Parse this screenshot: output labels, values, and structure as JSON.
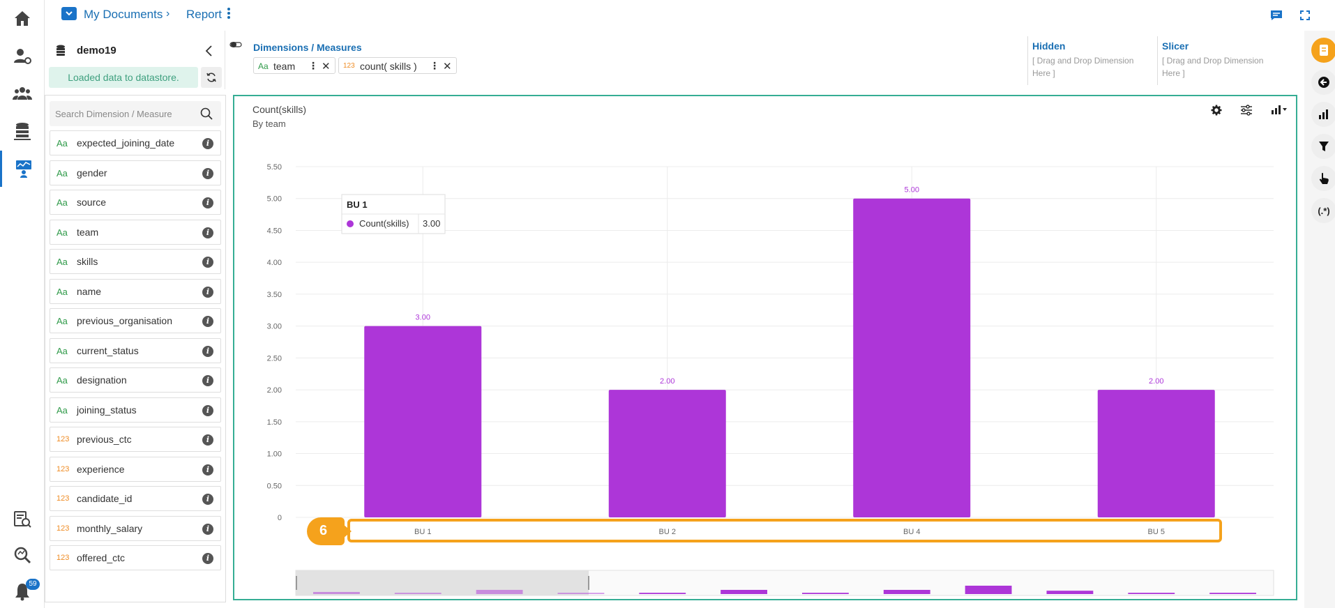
{
  "breadcrumb": {
    "root": "My Documents",
    "current": "Report"
  },
  "datastore": {
    "name": "demo19",
    "status": "Loaded data to datastore."
  },
  "search": {
    "placeholder": "Search Dimension / Measure"
  },
  "fields": [
    {
      "type_label": "Aa",
      "kind": "dimension",
      "name": "expected_joining_date"
    },
    {
      "type_label": "Aa",
      "kind": "dimension",
      "name": "gender"
    },
    {
      "type_label": "Aa",
      "kind": "dimension",
      "name": "source"
    },
    {
      "type_label": "Aa",
      "kind": "dimension",
      "name": "team"
    },
    {
      "type_label": "Aa",
      "kind": "dimension",
      "name": "skills"
    },
    {
      "type_label": "Aa",
      "kind": "dimension",
      "name": "name"
    },
    {
      "type_label": "Aa",
      "kind": "dimension",
      "name": "previous_organisation"
    },
    {
      "type_label": "Aa",
      "kind": "dimension",
      "name": "current_status"
    },
    {
      "type_label": "Aa",
      "kind": "dimension",
      "name": "designation"
    },
    {
      "type_label": "Aa",
      "kind": "dimension",
      "name": "joining_status"
    },
    {
      "type_label": "123",
      "kind": "measure",
      "name": "previous_ctc"
    },
    {
      "type_label": "123",
      "kind": "measure",
      "name": "experience"
    },
    {
      "type_label": "123",
      "kind": "measure",
      "name": "candidate_id"
    },
    {
      "type_label": "123",
      "kind": "measure",
      "name": "monthly_salary"
    },
    {
      "type_label": "123",
      "kind": "measure",
      "name": "offered_ctc"
    }
  ],
  "info_glyph": "i",
  "dimbar": {
    "title": "Dimensions / Measures",
    "chips": [
      {
        "type_label": "Aa",
        "name": "team"
      },
      {
        "type_label": "123",
        "name": "count( skills )"
      }
    ],
    "hidden": {
      "title": "Hidden",
      "hint": "[ Drag and Drop Dimension Here ]"
    },
    "slicer": {
      "title": "Slicer",
      "hint": "[ Drag and Drop Dimension Here ]"
    }
  },
  "notifications_count": "59",
  "annotation_number": "6",
  "icons": {
    "nav": [
      "home-icon",
      "user-settings-icon",
      "users-group-icon",
      "database-server-icon",
      "dashboard-designer-icon",
      "data-search-icon",
      "zoom-search-icon",
      "bell-icon"
    ],
    "rail": [
      "report-icon",
      "back-arrow-icon",
      "bar-chart-icon",
      "filter-icon",
      "pointer-hand-icon",
      "regex-icon"
    ],
    "regex_label": "(.*)"
  },
  "colors": {
    "accent": "#1a73c8",
    "bar": "#ad36d8",
    "card_border": "#35ad94",
    "annotation": "#f5a21c"
  },
  "chart_data": {
    "type": "bar",
    "title": "Count(skills)",
    "subtitle": "By team",
    "categories": [
      "BU 1",
      "BU 2",
      "BU 4",
      "BU 5"
    ],
    "series": [
      {
        "name": "Count(skills)",
        "values": [
          3.0,
          2.0,
          5.0,
          2.0
        ]
      }
    ],
    "data_labels": [
      "3.00",
      "2.00",
      "5.00",
      "2.00"
    ],
    "y_ticks": [
      "0",
      "0.50",
      "1.00",
      "1.50",
      "2.00",
      "2.50",
      "3.00",
      "3.50",
      "4.00",
      "4.50",
      "5.00",
      "5.50"
    ],
    "ylim": [
      0,
      5.5
    ],
    "grid": true,
    "tooltip": {
      "category": "BU 1",
      "series": "Count(skills)",
      "value": "3.00"
    },
    "navigator_values": [
      0.5,
      0.3,
      1.0,
      0.3,
      0.3,
      1.0,
      0.3,
      1.0,
      2.0,
      0.8,
      0.3,
      0.3
    ]
  }
}
